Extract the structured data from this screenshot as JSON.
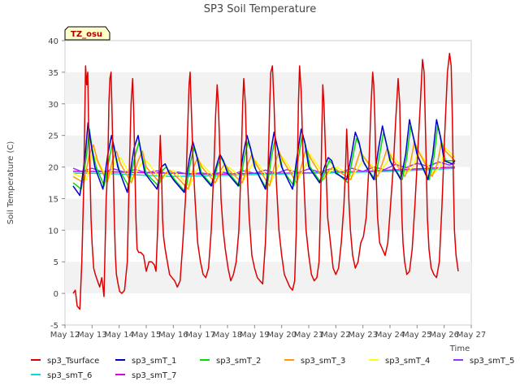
{
  "chart_data": {
    "type": "line",
    "title": "SP3 Soil Temperature",
    "xlabel": "Time",
    "ylabel": "Soil Temperature (C)",
    "badge": "TZ_osu",
    "xlim": [
      12,
      27
    ],
    "ylim": [
      -5,
      40
    ],
    "x_ticks": [
      {
        "v": 12,
        "label": "May 12"
      },
      {
        "v": 13,
        "label": "May 13"
      },
      {
        "v": 14,
        "label": "May 14"
      },
      {
        "v": 15,
        "label": "May 15"
      },
      {
        "v": 16,
        "label": "May 16"
      },
      {
        "v": 17,
        "label": "May 17"
      },
      {
        "v": 18,
        "label": "May 18"
      },
      {
        "v": 19,
        "label": "May 19"
      },
      {
        "v": 20,
        "label": "May 20"
      },
      {
        "v": 21,
        "label": "May 21"
      },
      {
        "v": 22,
        "label": "May 22"
      },
      {
        "v": 23,
        "label": "May 23"
      },
      {
        "v": 24,
        "label": "May 24"
      },
      {
        "v": 25,
        "label": "May 25"
      },
      {
        "v": 26,
        "label": "May 26"
      },
      {
        "v": 27,
        "label": "May 27"
      }
    ],
    "y_ticks": [
      {
        "v": -5,
        "label": "-5"
      },
      {
        "v": 0,
        "label": "0"
      },
      {
        "v": 5,
        "label": "5"
      },
      {
        "v": 10,
        "label": "10"
      },
      {
        "v": 15,
        "label": "15"
      },
      {
        "v": 20,
        "label": "20"
      },
      {
        "v": 25,
        "label": "25"
      },
      {
        "v": 30,
        "label": "30"
      },
      {
        "v": 35,
        "label": "35"
      },
      {
        "v": 40,
        "label": "40"
      }
    ],
    "series": [
      {
        "name": "sp3_Tsurface",
        "color": "#dd0000",
        "x": [
          12.3,
          12.38,
          12.45,
          12.55,
          12.62,
          12.68,
          12.72,
          12.76,
          12.8,
          12.84,
          12.88,
          12.92,
          12.96,
          13.0,
          13.06,
          13.12,
          13.2,
          13.28,
          13.36,
          13.44,
          13.52,
          13.58,
          13.62,
          13.66,
          13.7,
          13.74,
          13.78,
          13.82,
          13.86,
          13.9,
          13.96,
          14.02,
          14.1,
          14.2,
          14.3,
          14.38,
          14.44,
          14.5,
          14.54,
          14.58,
          14.62,
          14.66,
          14.72,
          14.8,
          14.9,
          15.0,
          15.1,
          15.2,
          15.3,
          15.36,
          15.42,
          15.48,
          15.52,
          15.56,
          15.6,
          15.64,
          15.7,
          15.78,
          15.86,
          15.95,
          16.05,
          16.15,
          16.25,
          16.35,
          16.45,
          16.52,
          16.58,
          16.62,
          16.66,
          16.72,
          16.8,
          16.9,
          17.0,
          17.1,
          17.2,
          17.3,
          17.4,
          17.5,
          17.56,
          17.62,
          17.66,
          17.7,
          17.76,
          17.84,
          17.92,
          18.02,
          18.12,
          18.22,
          18.32,
          18.42,
          18.5,
          18.56,
          18.6,
          18.66,
          18.72,
          18.8,
          18.9,
          19.0,
          19.1,
          19.2,
          19.3,
          19.4,
          19.5,
          19.56,
          19.6,
          19.66,
          19.72,
          19.8,
          19.9,
          20.0,
          20.1,
          20.2,
          20.3,
          20.4,
          20.48,
          20.54,
          20.58,
          20.62,
          20.66,
          20.72,
          20.8,
          20.9,
          21.0,
          21.1,
          21.2,
          21.3,
          21.38,
          21.44,
          21.48,
          21.52,
          21.56,
          21.62,
          21.7,
          21.8,
          21.9,
          22.0,
          22.1,
          22.2,
          22.3,
          22.36,
          22.4,
          22.44,
          22.48,
          22.54,
          22.62,
          22.72,
          22.82,
          22.92,
          23.02,
          23.12,
          23.22,
          23.3,
          23.36,
          23.4,
          23.44,
          23.48,
          23.54,
          23.62,
          23.72,
          23.82,
          23.92,
          24.02,
          24.12,
          24.22,
          24.3,
          24.36,
          24.4,
          24.44,
          24.48,
          24.54,
          24.62,
          24.72,
          24.82,
          24.92,
          25.02,
          25.12,
          25.2,
          25.26,
          25.3,
          25.34,
          25.38,
          25.44,
          25.52,
          25.62,
          25.72,
          25.82,
          25.92,
          26.02,
          26.12,
          26.2,
          26.26,
          26.3,
          26.34,
          26.38,
          26.44,
          26.52
        ],
        "y": [
          0,
          0.5,
          -2,
          -2.5,
          5,
          15,
          25,
          36,
          33,
          35,
          25,
          20,
          12,
          8,
          4,
          3,
          2,
          1,
          2.5,
          -0.5,
          15,
          20,
          30,
          34,
          35,
          28,
          20,
          12,
          6,
          3,
          1.5,
          0.3,
          0,
          0.5,
          5,
          20,
          30,
          34,
          28,
          20,
          12,
          7,
          6.5,
          6.5,
          6,
          3.5,
          5,
          5,
          4.5,
          3.5,
          10,
          20,
          25,
          20,
          12,
          9,
          7,
          5,
          3,
          2.5,
          2,
          1,
          2,
          8,
          15,
          25,
          33,
          35,
          30,
          22,
          15,
          8,
          5,
          3,
          2.5,
          4,
          10,
          20,
          28,
          33,
          30,
          25,
          15,
          10,
          7,
          4,
          2,
          3,
          5,
          10,
          20,
          30,
          34,
          30,
          20,
          12,
          6,
          4,
          2.5,
          2,
          1.5,
          8,
          20,
          30,
          35,
          36,
          30,
          18,
          10,
          6,
          3,
          2,
          1,
          0.5,
          2,
          10,
          20,
          30,
          36,
          32,
          20,
          10,
          6,
          3,
          2,
          2.5,
          5,
          15,
          25,
          33,
          30,
          22,
          12,
          8,
          4,
          3,
          4,
          8,
          14,
          20,
          26,
          22,
          15,
          10,
          6,
          4,
          5,
          8,
          9,
          12,
          20,
          30,
          35,
          33,
          28,
          20,
          12,
          8,
          7,
          6,
          8,
          14,
          20,
          28,
          34,
          30,
          20,
          12,
          8,
          5,
          3,
          3.5,
          7,
          14,
          22,
          30,
          37,
          35,
          28,
          20,
          12,
          7,
          4,
          3,
          2.5,
          5,
          14,
          25,
          35,
          38,
          36,
          28,
          18,
          10,
          6,
          3.5
        ]
      },
      {
        "name": "sp3_smT_1",
        "color": "#0000cc",
        "x": [
          12.3,
          12.55,
          12.75,
          12.85,
          12.95,
          13.1,
          13.4,
          13.58,
          13.72,
          13.82,
          13.95,
          14.3,
          14.55,
          14.7,
          14.82,
          14.95,
          15.4,
          15.55,
          15.7,
          15.85,
          16.0,
          16.4,
          16.58,
          16.72,
          16.85,
          17.0,
          17.4,
          17.58,
          17.72,
          17.85,
          18.0,
          18.4,
          18.58,
          18.72,
          18.85,
          19.0,
          19.4,
          19.58,
          19.72,
          19.85,
          20.0,
          20.4,
          20.58,
          20.72,
          20.85,
          21.0,
          21.4,
          21.58,
          21.72,
          21.85,
          22.0,
          22.4,
          22.58,
          22.72,
          22.85,
          23.0,
          23.4,
          23.58,
          23.72,
          23.85,
          24.0,
          24.4,
          24.58,
          24.72,
          24.85,
          25.0,
          25.4,
          25.58,
          25.72,
          25.85,
          26.0,
          26.3,
          26.4
        ],
        "y": [
          17,
          15.5,
          22,
          27,
          24,
          20,
          16.5,
          22,
          25,
          23,
          20,
          16,
          23,
          25,
          22,
          19,
          16.5,
          20,
          20.5,
          19,
          18,
          16,
          21,
          24,
          22,
          19,
          17,
          20,
          22,
          21,
          19,
          17,
          22,
          25,
          23,
          20,
          16.5,
          22,
          25.5,
          23,
          20,
          16.5,
          22,
          26,
          24,
          20,
          17.5,
          20,
          21.5,
          21,
          19,
          18,
          22,
          25.5,
          24,
          21,
          18,
          23,
          26.5,
          24,
          21,
          18,
          22,
          27.5,
          25,
          22,
          18,
          22,
          27.5,
          25,
          21,
          20.5,
          21
        ]
      },
      {
        "name": "sp3_smT_2",
        "color": "#00dd00",
        "x": [
          12.3,
          12.6,
          12.8,
          12.9,
          13.0,
          13.15,
          13.45,
          13.62,
          13.76,
          13.86,
          14.0,
          14.35,
          14.6,
          14.74,
          14.86,
          15.0,
          15.45,
          15.6,
          15.74,
          15.88,
          16.05,
          16.45,
          16.62,
          16.76,
          16.88,
          17.05,
          17.45,
          17.62,
          17.76,
          17.88,
          18.05,
          18.45,
          18.62,
          18.76,
          18.88,
          19.05,
          19.45,
          19.62,
          19.76,
          19.88,
          20.05,
          20.45,
          20.62,
          20.76,
          20.88,
          21.05,
          21.45,
          21.62,
          21.76,
          21.88,
          22.05,
          22.45,
          22.62,
          22.76,
          22.88,
          23.05,
          23.45,
          23.62,
          23.76,
          23.88,
          24.05,
          24.45,
          24.62,
          24.76,
          24.88,
          25.05,
          25.45,
          25.62,
          25.76,
          25.88,
          26.05,
          26.4
        ],
        "y": [
          17.5,
          16.5,
          22,
          26,
          23,
          20,
          17,
          21,
          24,
          22,
          19.5,
          17,
          22,
          24,
          21.5,
          19,
          17,
          19.5,
          20,
          19,
          18,
          16,
          20.5,
          23,
          21.5,
          19,
          17,
          20,
          21.5,
          20.5,
          19,
          17,
          21.5,
          24,
          22.5,
          19.5,
          16.5,
          21.5,
          24.5,
          22.5,
          19.5,
          17,
          21.5,
          25,
          23.5,
          20,
          17.5,
          19.5,
          21,
          20.5,
          19,
          17.5,
          21.5,
          24.5,
          23.5,
          20.5,
          18,
          22,
          25.5,
          23.5,
          20.5,
          18,
          21.5,
          26.5,
          24.5,
          21.5,
          18,
          21.5,
          26.5,
          24.5,
          21,
          21
        ]
      },
      {
        "name": "sp3_smT_3",
        "color": "#ff9900",
        "x": [
          12.3,
          12.7,
          12.9,
          13.05,
          13.2,
          13.55,
          13.75,
          13.9,
          14.05,
          14.45,
          14.7,
          14.86,
          15.0,
          15.5,
          15.7,
          15.86,
          16.0,
          16.55,
          16.75,
          16.9,
          17.05,
          17.55,
          17.75,
          17.9,
          18.05,
          18.55,
          18.75,
          18.9,
          19.05,
          19.55,
          19.75,
          19.9,
          20.05,
          20.55,
          20.75,
          20.9,
          21.05,
          21.55,
          21.75,
          21.9,
          22.05,
          22.55,
          22.75,
          22.9,
          23.05,
          23.55,
          23.75,
          23.9,
          24.05,
          24.55,
          24.75,
          24.9,
          25.05,
          25.55,
          25.75,
          25.9,
          26.05,
          26.4
        ],
        "y": [
          18.5,
          17.5,
          22,
          23.5,
          21,
          17.5,
          21,
          22.5,
          20.5,
          17.5,
          21,
          22.5,
          20,
          17.5,
          19,
          19.5,
          19,
          16.5,
          20,
          21.5,
          20,
          17.5,
          19.5,
          20.5,
          19.5,
          17.5,
          20.5,
          22,
          20.5,
          17,
          20.5,
          22.5,
          21,
          17.5,
          20.5,
          23,
          21.5,
          18,
          19.5,
          20,
          19.5,
          18,
          20.5,
          22.5,
          21.5,
          18.5,
          21,
          23,
          21.5,
          18.5,
          20.5,
          24,
          22.5,
          18.5,
          20.5,
          24,
          22.5,
          21
        ]
      },
      {
        "name": "sp3_smT_4",
        "color": "#ffff00",
        "x": [
          12.3,
          12.8,
          13.0,
          13.2,
          13.6,
          13.85,
          14.05,
          14.5,
          14.8,
          15.0,
          15.55,
          15.8,
          16.0,
          16.6,
          16.85,
          17.05,
          17.6,
          17.85,
          18.05,
          18.6,
          18.85,
          19.05,
          19.6,
          19.85,
          20.05,
          20.6,
          20.85,
          21.05,
          21.6,
          21.85,
          22.05,
          22.6,
          22.85,
          23.05,
          23.6,
          23.85,
          24.05,
          24.6,
          24.85,
          25.05,
          25.6,
          25.85,
          26.05,
          26.4
        ],
        "y": [
          19,
          18,
          22,
          21,
          18,
          21,
          21.5,
          18,
          20.5,
          21,
          18,
          19,
          19.5,
          17,
          19.5,
          20.5,
          18,
          19.5,
          20,
          18,
          20,
          21,
          17.5,
          20,
          21.5,
          18,
          20,
          22,
          18.5,
          19.5,
          20,
          18.5,
          20,
          21.5,
          19,
          20.5,
          22,
          19,
          20,
          22.5,
          19,
          20,
          23,
          21.5
        ]
      },
      {
        "name": "sp3_smT_5",
        "color": "#9933ff",
        "x": [
          12.3,
          12.6,
          13.0,
          13.4,
          13.8,
          14.2,
          14.6,
          15.0,
          15.4,
          15.8,
          16.2,
          16.6,
          17.0,
          17.4,
          17.8,
          18.2,
          18.6,
          19.0,
          19.4,
          19.8,
          20.2,
          20.6,
          21.0,
          21.4,
          21.8,
          22.2,
          22.6,
          23.0,
          23.4,
          23.8,
          24.2,
          24.6,
          25.0,
          25.4,
          25.8,
          26.2,
          26.4
        ],
        "y": [
          19.8,
          19.3,
          19.8,
          19.2,
          19.7,
          19.2,
          19.6,
          19.1,
          19.4,
          18.9,
          19.2,
          18.8,
          19.1,
          18.8,
          19.2,
          18.9,
          19.4,
          19.0,
          19.5,
          19.0,
          19.6,
          19.1,
          19.7,
          19.2,
          19.7,
          19.2,
          19.8,
          19.3,
          20.0,
          19.6,
          20.4,
          19.9,
          20.6,
          20.1,
          20.8,
          20.3,
          20.6
        ]
      },
      {
        "name": "sp3_smT_6",
        "color": "#00dddd",
        "x": [
          12.3,
          13.0,
          14.0,
          15.0,
          16.0,
          17.0,
          18.0,
          19.0,
          20.0,
          21.0,
          22.0,
          23.0,
          24.0,
          25.0,
          26.0,
          26.4
        ],
        "y": [
          19.0,
          19.0,
          18.9,
          18.7,
          18.5,
          18.6,
          18.7,
          18.8,
          18.9,
          19.0,
          19.1,
          19.2,
          19.3,
          19.5,
          19.7,
          19.8
        ]
      },
      {
        "name": "sp3_smT_7",
        "color": "#dd00dd",
        "x": [
          12.3,
          13.0,
          14.0,
          15.0,
          16.0,
          17.0,
          18.0,
          19.0,
          20.0,
          21.0,
          22.0,
          23.0,
          24.0,
          25.0,
          26.0,
          26.4
        ],
        "y": [
          19.3,
          19.3,
          19.2,
          19.1,
          19.0,
          18.9,
          18.9,
          19.0,
          19.0,
          19.1,
          19.2,
          19.3,
          19.5,
          19.7,
          19.9,
          20.0
        ]
      }
    ]
  }
}
